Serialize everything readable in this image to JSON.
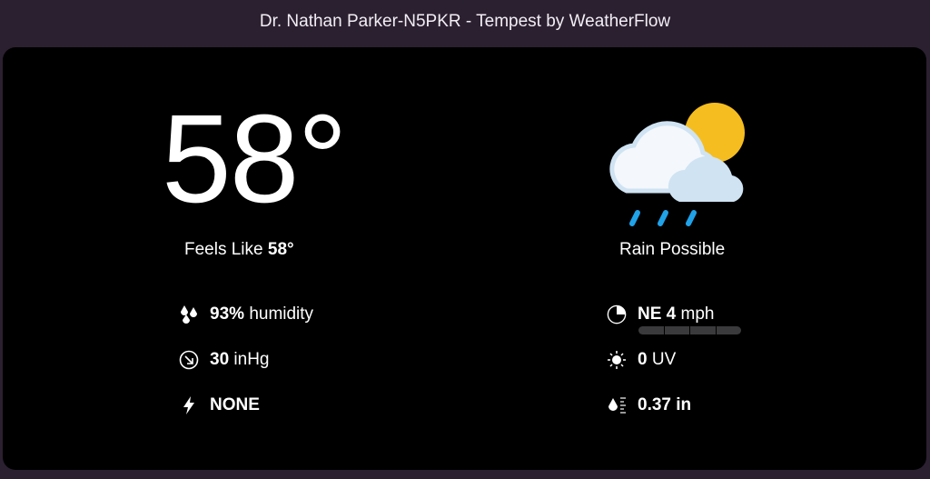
{
  "window": {
    "title": "Dr. Nathan Parker-N5PKR - Tempest by WeatherFlow"
  },
  "current": {
    "temperature": "58°",
    "feels_like_label": "Feels Like",
    "feels_like_value": "58°",
    "condition": "Rain Possible",
    "condition_icon": "partly-cloudy-rain-icon"
  },
  "left_stats": [
    {
      "icon": "humidity-drops-icon",
      "value": "93%",
      "unit": "humidity"
    },
    {
      "icon": "pressure-trend-down-icon",
      "value": "30",
      "unit": "inHg"
    },
    {
      "icon": "lightning-icon",
      "value": "NONE",
      "unit": ""
    }
  ],
  "right_stats": [
    {
      "icon": "wind-direction-icon",
      "value": "NE 4",
      "unit": "mph"
    },
    {
      "icon": "sun-icon",
      "value": "0",
      "unit": "UV"
    },
    {
      "icon": "rain-gauge-icon",
      "value": "0.37 in",
      "unit": ""
    }
  ],
  "colors": {
    "sun": "#f5bd1f",
    "cloud": "#f4f7fb",
    "cloud_back": "#cfe3f2",
    "rain": "#1fa2e8",
    "titlebar": "#2b2030"
  }
}
